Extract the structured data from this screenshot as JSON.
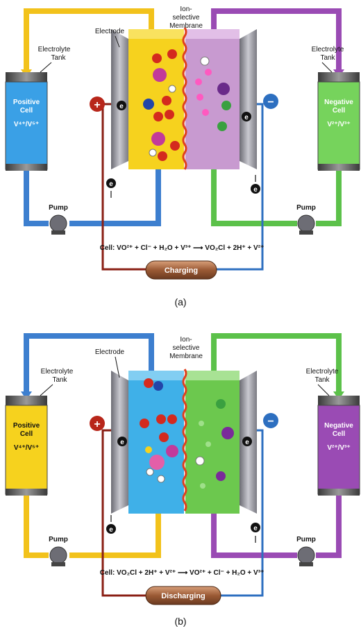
{
  "colors": {
    "yellow": "#f2c21b",
    "purple": "#9a4bb4",
    "blue": "#3d7fcf",
    "green": "#5cc14a",
    "darkred": "#8a1f14",
    "red_sign": "#b8261a",
    "blue_sign": "#2d6fc0"
  },
  "panel_a": {
    "electrode_label": "Electrode",
    "membrane_label_1": "Ion-",
    "membrane_label_2": "selective",
    "membrane_label_3": "Membrane",
    "left_tank_label_1": "Electrolyte",
    "left_tank_label_2": "Tank",
    "right_tank_label_1": "Electrolyte",
    "right_tank_label_2": "Tank",
    "left_cell_1": "Positive",
    "left_cell_2": "Cell",
    "left_cell_3": "V⁴⁺/V⁵⁺",
    "right_cell_1": "Negative",
    "right_cell_2": "Cell",
    "right_cell_3": "V²⁺/V³⁺",
    "pump_left": "Pump",
    "pump_right": "Pump",
    "equation": "Cell:  VO²⁺ + Cl⁻ + H₂O + V³⁺  ⟶  VO₂Cl + 2H⁺ +  V²⁺",
    "mode_label": "Charging",
    "caption": "(a)",
    "plus": "+",
    "minus": "−",
    "electron": "e"
  },
  "panel_b": {
    "electrode_label": "Electrode",
    "membrane_label_1": "Ion-",
    "membrane_label_2": "selective",
    "membrane_label_3": "Membrane",
    "left_tank_label_1": "Electrolyte",
    "left_tank_label_2": "Tank",
    "right_tank_label_1": "Electrolyte",
    "right_tank_label_2": "Tank",
    "left_cell_1": "Positive",
    "left_cell_2": "Cell",
    "left_cell_3": "V⁴⁺/V⁵⁺",
    "right_cell_1": "Negative",
    "right_cell_2": "Cell",
    "right_cell_3": "V²⁺/V³⁺",
    "pump_left": "Pump",
    "pump_right": "Pump",
    "equation": "Cell:  VO₂Cl + 2H⁺ +  V²⁺  ⟶  VO²⁺ + Cl⁻ + H₂O + V³⁺",
    "mode_label": "Discharging",
    "caption": "(b)",
    "plus": "+",
    "minus": "−",
    "electron": "e"
  }
}
